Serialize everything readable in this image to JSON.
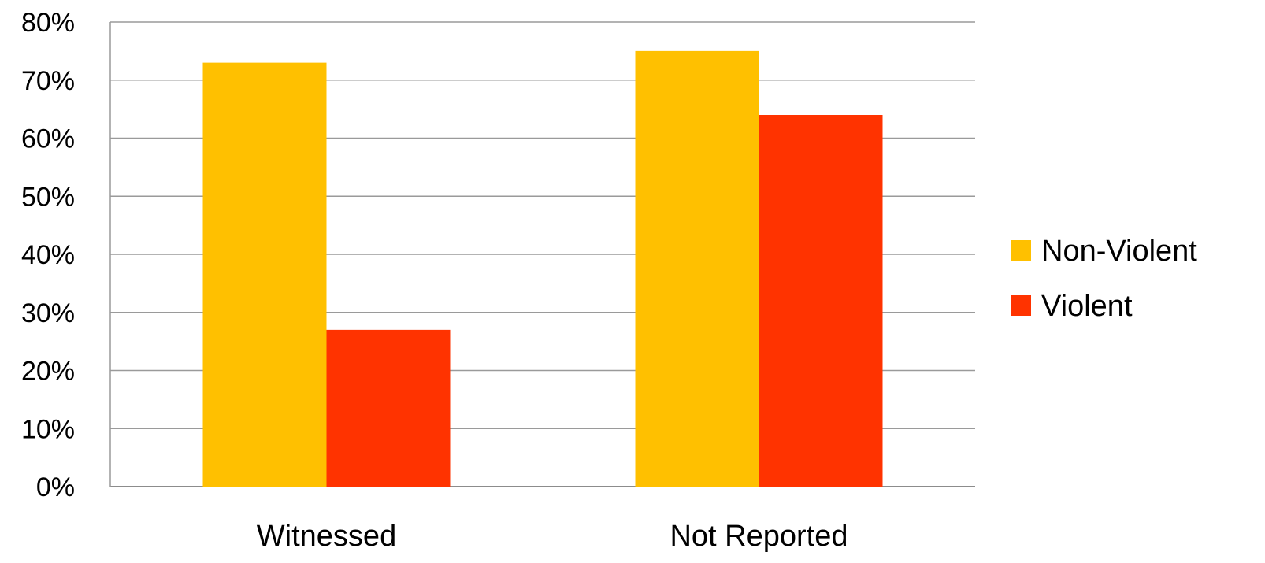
{
  "chart_data": {
    "type": "bar",
    "categories": [
      "Witnessed",
      "Not Reported"
    ],
    "series": [
      {
        "name": "Non-Violent",
        "color": "#FFC000",
        "values": [
          73,
          75
        ]
      },
      {
        "name": "Violent",
        "color": "#FF3300",
        "values": [
          27,
          64
        ]
      }
    ],
    "y_ticks": [
      "0%",
      "10%",
      "20%",
      "30%",
      "40%",
      "50%",
      "60%",
      "70%",
      "80%"
    ],
    "ylim": [
      0,
      80
    ],
    "y_unit": "%",
    "grid": true,
    "legend_position": "right"
  }
}
